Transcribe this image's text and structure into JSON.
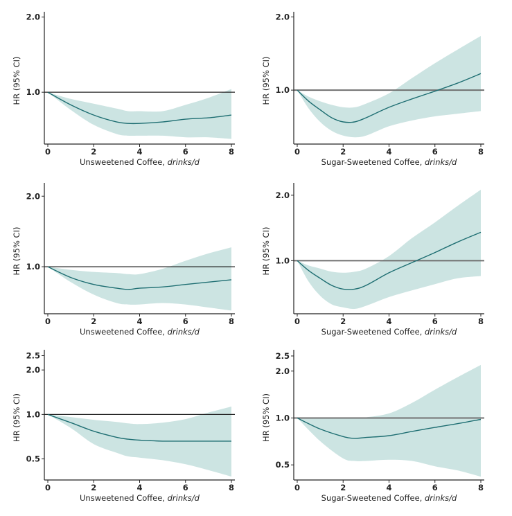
{
  "colors": {
    "band": "#cce4e2",
    "line": "#1e6e72",
    "axis": "#222222",
    "ref_line_left": "#222222",
    "ref_line_right": "#707070"
  },
  "chart_data": [
    {
      "id": "row1-left",
      "type": "line",
      "xlabel": "Unsweetened Coffee, ",
      "xlabel_italic": "drinks/d",
      "ylabel": "HR (95% CI)",
      "yscale": "log",
      "xlim": [
        0,
        8
      ],
      "ylim": [
        0.62,
        2.1
      ],
      "xticks": [
        0,
        2,
        4,
        6,
        8
      ],
      "yticks": [
        1.0,
        2.0
      ],
      "ytick_labels": [
        "1.0",
        "2.0"
      ],
      "reference_line": 1.0,
      "grid": false,
      "x": [
        0,
        1,
        2,
        3,
        3.5,
        4,
        5,
        6,
        7,
        8
      ],
      "series": [
        {
          "name": "HR",
          "values": [
            1.0,
            0.89,
            0.81,
            0.76,
            0.75,
            0.75,
            0.76,
            0.78,
            0.79,
            0.81
          ]
        },
        {
          "name": "CI upper",
          "values": [
            1.0,
            0.94,
            0.9,
            0.86,
            0.84,
            0.84,
            0.84,
            0.89,
            0.95,
            1.03
          ]
        },
        {
          "name": "CI lower",
          "values": [
            1.0,
            0.85,
            0.74,
            0.68,
            0.67,
            0.67,
            0.67,
            0.66,
            0.66,
            0.65
          ]
        }
      ]
    },
    {
      "id": "row1-right",
      "type": "line",
      "xlabel": "Sugar-Sweetened Coffee, ",
      "xlabel_italic": "drinks/d",
      "ylabel": "HR (95% CI)",
      "yscale": "log",
      "xlim": [
        0,
        8
      ],
      "ylim": [
        0.6,
        2.1
      ],
      "xticks": [
        0,
        2,
        4,
        6,
        8
      ],
      "yticks": [
        1.0,
        2.0
      ],
      "ytick_labels": [
        "1.0",
        "2.0"
      ],
      "reference_line": 1.0,
      "grid": false,
      "x": [
        0,
        0.5,
        1,
        1.5,
        2,
        2.5,
        3,
        4,
        5,
        6,
        7,
        8
      ],
      "series": [
        {
          "name": "HR",
          "values": [
            1.0,
            0.9,
            0.83,
            0.77,
            0.74,
            0.74,
            0.77,
            0.85,
            0.92,
            0.99,
            1.07,
            1.17
          ]
        },
        {
          "name": "CI upper",
          "values": [
            1.0,
            0.94,
            0.9,
            0.87,
            0.85,
            0.85,
            0.88,
            0.97,
            1.12,
            1.29,
            1.47,
            1.67
          ]
        },
        {
          "name": "CI lower",
          "values": [
            1.0,
            0.84,
            0.74,
            0.68,
            0.65,
            0.64,
            0.65,
            0.71,
            0.75,
            0.78,
            0.8,
            0.82
          ]
        }
      ]
    },
    {
      "id": "row2-left",
      "type": "line",
      "xlabel": "Unsweetened Coffee, ",
      "xlabel_italic": "drinks/d",
      "ylabel": "HR (95% CI)",
      "yscale": "log",
      "xlim": [
        0,
        8
      ],
      "ylim": [
        0.63,
        2.28
      ],
      "xticks": [
        0,
        2,
        4,
        6,
        8
      ],
      "yticks": [
        1.0,
        2.0
      ],
      "ytick_labels": [
        "1.0",
        "2.0"
      ],
      "reference_line": 1.0,
      "grid": false,
      "x": [
        0,
        1,
        2,
        3,
        3.5,
        4,
        5,
        6,
        7,
        8
      ],
      "series": [
        {
          "name": "HR",
          "values": [
            1.0,
            0.9,
            0.84,
            0.81,
            0.8,
            0.81,
            0.82,
            0.84,
            0.86,
            0.88
          ]
        },
        {
          "name": "CI upper",
          "values": [
            1.0,
            0.97,
            0.95,
            0.94,
            0.93,
            0.93,
            0.98,
            1.06,
            1.14,
            1.21
          ]
        },
        {
          "name": "CI lower",
          "values": [
            1.0,
            0.86,
            0.76,
            0.7,
            0.69,
            0.69,
            0.7,
            0.69,
            0.67,
            0.65
          ]
        }
      ]
    },
    {
      "id": "row2-right",
      "type": "line",
      "xlabel": "Sugar-Sweetened Coffee, ",
      "xlabel_italic": "drinks/d",
      "ylabel": "HR (95% CI)",
      "yscale": "log",
      "xlim": [
        0,
        8
      ],
      "ylim": [
        0.57,
        2.28
      ],
      "xticks": [
        0,
        2,
        4,
        6,
        8
      ],
      "yticks": [
        1.0,
        2.0
      ],
      "ytick_labels": [
        "1.0",
        "2.0"
      ],
      "reference_line": 1.0,
      "grid": false,
      "x": [
        0,
        0.5,
        1,
        1.5,
        2,
        2.5,
        3,
        4,
        5,
        6,
        7,
        8
      ],
      "series": [
        {
          "name": "HR",
          "values": [
            1.0,
            0.9,
            0.83,
            0.77,
            0.74,
            0.74,
            0.77,
            0.88,
            0.98,
            1.09,
            1.22,
            1.35
          ]
        },
        {
          "name": "CI upper",
          "values": [
            1.0,
            0.95,
            0.92,
            0.89,
            0.88,
            0.89,
            0.92,
            1.05,
            1.27,
            1.5,
            1.79,
            2.12
          ]
        },
        {
          "name": "CI lower",
          "values": [
            1.0,
            0.8,
            0.69,
            0.63,
            0.61,
            0.6,
            0.62,
            0.68,
            0.73,
            0.78,
            0.83,
            0.85
          ]
        }
      ]
    },
    {
      "id": "row3-left",
      "type": "line",
      "xlabel": "Unsweetened Coffee, ",
      "xlabel_italic": "drinks/d",
      "ylabel": "HR (95% CI)",
      "yscale": "log",
      "xlim": [
        0,
        8
      ],
      "ylim": [
        0.36,
        2.74
      ],
      "xticks": [
        0,
        2,
        4,
        6,
        8
      ],
      "yticks": [
        0.5,
        1.0,
        2.0,
        2.5
      ],
      "ytick_labels": [
        "0.5",
        "1.0",
        "2.0",
        "2.5"
      ],
      "reference_line": 1.0,
      "grid": false,
      "x": [
        0,
        1,
        2,
        3,
        3.5,
        4,
        5,
        6,
        7,
        8
      ],
      "series": [
        {
          "name": "HR",
          "values": [
            1.0,
            0.88,
            0.77,
            0.7,
            0.68,
            0.67,
            0.66,
            0.66,
            0.66,
            0.66
          ]
        },
        {
          "name": "CI upper",
          "values": [
            1.0,
            0.96,
            0.92,
            0.89,
            0.87,
            0.86,
            0.88,
            0.93,
            1.03,
            1.13
          ]
        },
        {
          "name": "CI lower",
          "values": [
            1.0,
            0.81,
            0.63,
            0.55,
            0.52,
            0.51,
            0.49,
            0.46,
            0.42,
            0.38
          ]
        }
      ]
    },
    {
      "id": "row3-right",
      "type": "line",
      "xlabel": "Sugar-Sweetened Coffee, ",
      "xlabel_italic": "drinks/d",
      "ylabel": "HR (95% CI)",
      "yscale": "log",
      "xlim": [
        0,
        8
      ],
      "ylim": [
        0.4,
        2.74
      ],
      "xticks": [
        0,
        2,
        4,
        6,
        8
      ],
      "yticks": [
        0.5,
        1.0,
        2.0,
        2.5
      ],
      "ytick_labels": [
        "0.5",
        "1.0",
        "2.0",
        "2.5"
      ],
      "reference_line": 1.0,
      "grid": false,
      "x": [
        0,
        1,
        2,
        2.5,
        3,
        4,
        5,
        6,
        7,
        8
      ],
      "series": [
        {
          "name": "HR",
          "values": [
            1.0,
            0.85,
            0.76,
            0.74,
            0.75,
            0.77,
            0.82,
            0.87,
            0.92,
            0.98
          ]
        },
        {
          "name": "CI upper",
          "values": [
            1.0,
            1.0,
            1.0,
            1.0,
            1.01,
            1.07,
            1.25,
            1.52,
            1.83,
            2.19
          ]
        },
        {
          "name": "CI lower",
          "values": [
            1.0,
            0.71,
            0.55,
            0.53,
            0.53,
            0.54,
            0.53,
            0.49,
            0.46,
            0.42
          ]
        }
      ]
    }
  ]
}
